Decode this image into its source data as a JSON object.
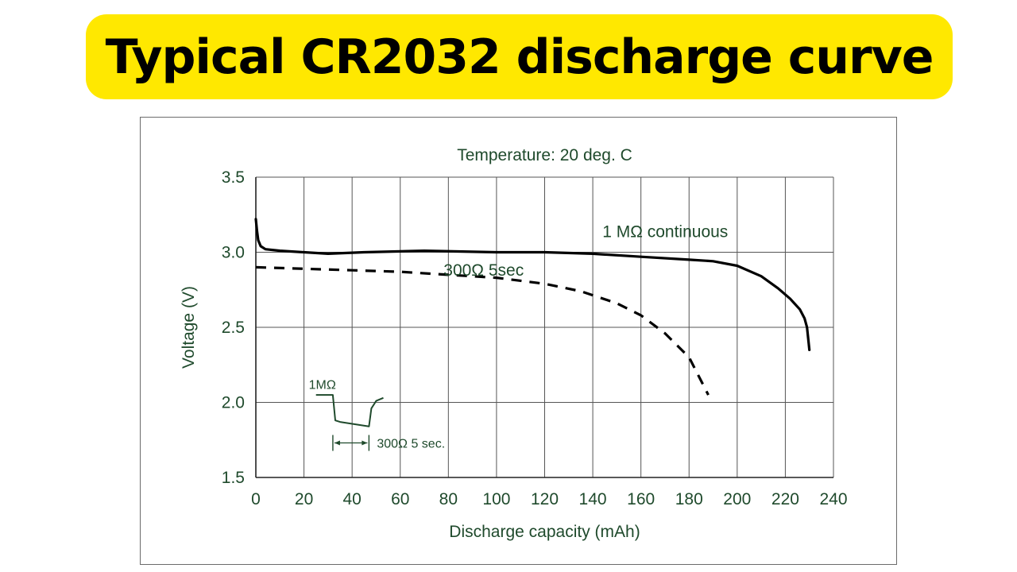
{
  "title": "Typical CR2032 discharge curve",
  "colors": {
    "banner": "#ffe800",
    "text_green": "#1f4a2c",
    "grid": "#555555",
    "curve": "#000000"
  },
  "chart_data": {
    "type": "line",
    "title": "Temperature: 20 deg. C",
    "xlabel": "Discharge capacity (mAh)",
    "ylabel": "Voltage (V)",
    "xlim": [
      0,
      240
    ],
    "ylim": [
      1.5,
      3.5
    ],
    "xticks": [
      0,
      20,
      40,
      60,
      80,
      100,
      120,
      140,
      160,
      180,
      200,
      220,
      240
    ],
    "yticks": [
      1.5,
      2.0,
      2.5,
      3.0,
      3.5
    ],
    "ytick_labels": [
      "1.5",
      "2.0",
      "2.5",
      "3.0",
      "3.5"
    ],
    "grid": true,
    "series": [
      {
        "name": "1 MΩ continuous",
        "style": "solid",
        "points": [
          [
            0,
            3.22
          ],
          [
            0.5,
            3.14
          ],
          [
            1,
            3.08
          ],
          [
            2,
            3.04
          ],
          [
            4,
            3.02
          ],
          [
            10,
            3.01
          ],
          [
            20,
            3.0
          ],
          [
            30,
            2.99
          ],
          [
            45,
            3.0
          ],
          [
            70,
            3.01
          ],
          [
            100,
            3.0
          ],
          [
            120,
            3.0
          ],
          [
            140,
            2.99
          ],
          [
            160,
            2.97
          ],
          [
            180,
            2.95
          ],
          [
            190,
            2.94
          ],
          [
            200,
            2.91
          ],
          [
            210,
            2.84
          ],
          [
            217,
            2.76
          ],
          [
            222,
            2.69
          ],
          [
            226,
            2.62
          ],
          [
            228,
            2.56
          ],
          [
            229,
            2.5
          ],
          [
            230,
            2.35
          ]
        ]
      },
      {
        "name": "300Ω 5sec",
        "style": "dashed",
        "points": [
          [
            0,
            2.9
          ],
          [
            20,
            2.89
          ],
          [
            40,
            2.88
          ],
          [
            60,
            2.87
          ],
          [
            80,
            2.85
          ],
          [
            100,
            2.83
          ],
          [
            120,
            2.79
          ],
          [
            135,
            2.74
          ],
          [
            150,
            2.66
          ],
          [
            160,
            2.58
          ],
          [
            170,
            2.46
          ],
          [
            180,
            2.3
          ],
          [
            188,
            2.05
          ]
        ]
      }
    ],
    "inset": {
      "label_top": "1MΩ",
      "label_bottom": "300Ω 5 sec.",
      "pulse_points": [
        [
          25,
          2.05
        ],
        [
          32,
          2.05
        ],
        [
          33,
          1.88
        ],
        [
          35,
          1.87
        ],
        [
          47,
          1.84
        ],
        [
          48,
          1.96
        ],
        [
          50,
          2.01
        ],
        [
          53,
          2.03
        ]
      ],
      "span": [
        32,
        47
      ],
      "span_y": 1.73
    }
  }
}
